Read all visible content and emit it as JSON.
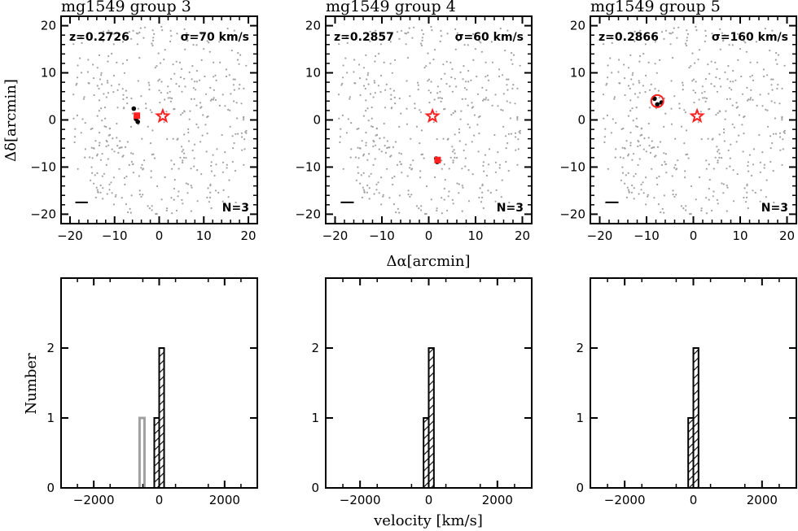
{
  "figure": {
    "sky_xlabel": "Δα[arcmin]",
    "sky_ylabel": "Δδ[arcmin]",
    "hist_xlabel": "velocity [km/s]",
    "hist_ylabel": "Number"
  },
  "chart_data": [
    {
      "type": "scatter",
      "title": "mg1549 group 3",
      "redshift_label": "z=0.2726",
      "sigma_label": "σ=70 km/s",
      "n_label": "N=3",
      "xlim": [
        -22,
        22
      ],
      "ylim": [
        -22,
        22
      ],
      "xticks": [
        -20,
        -10,
        0,
        10,
        20
      ],
      "yticks": [
        -20,
        -10,
        0,
        10,
        20
      ],
      "xticklabels": [
        "−20",
        "−10",
        "0",
        "10",
        "20"
      ],
      "yticklabels": [
        "−20",
        "−10",
        "0",
        "10",
        "20"
      ],
      "center_star": [
        0.8,
        0.8
      ],
      "members": [
        [
          -5.7,
          2.4
        ],
        [
          -5.2,
          0.2
        ],
        [
          -4.8,
          -0.4
        ]
      ],
      "group_center": [
        -5.0,
        0.9
      ],
      "center_marker": "square",
      "background_color": "#a0a0a0",
      "highlight_color": "#ff2020",
      "scale_bar": [
        -18.8,
        -16.0,
        -17.5
      ]
    },
    {
      "type": "scatter",
      "title": "mg1549 group 4",
      "redshift_label": "z=0.2857",
      "sigma_label": "σ=60 km/s",
      "n_label": "N=3",
      "xlim": [
        -22,
        22
      ],
      "ylim": [
        -22,
        22
      ],
      "xticks": [
        -20,
        -10,
        0,
        10,
        20
      ],
      "yticks": [
        -20,
        -10,
        0,
        10,
        20
      ],
      "xticklabels": [
        "−20",
        "−10",
        "0",
        "10",
        "20"
      ],
      "yticklabels": [
        "−20",
        "−10",
        "0",
        "10",
        "20"
      ],
      "center_star": [
        0.8,
        0.8
      ],
      "members": [
        [
          1.6,
          -8.2
        ],
        [
          2.1,
          -8.6
        ],
        [
          1.8,
          -8.9
        ]
      ],
      "group_center": [
        1.9,
        -8.5
      ],
      "center_marker": "square",
      "background_color": "#a0a0a0",
      "highlight_color": "#ff2020",
      "scale_bar": [
        -18.8,
        -16.0,
        -17.5
      ]
    },
    {
      "type": "scatter",
      "title": "mg1549 group 5",
      "redshift_label": "z=0.2866",
      "sigma_label": "σ=160 km/s",
      "n_label": "N=3",
      "xlim": [
        -22,
        22
      ],
      "ylim": [
        -22,
        22
      ],
      "xticks": [
        -20,
        -10,
        0,
        10,
        20
      ],
      "yticks": [
        -20,
        -10,
        0,
        10,
        20
      ],
      "xticklabels": [
        "−20",
        "−10",
        "0",
        "10",
        "20"
      ],
      "yticklabels": [
        "−20",
        "−10",
        "0",
        "10",
        "20"
      ],
      "center_star": [
        0.8,
        0.8
      ],
      "members": [
        [
          -8.3,
          4.5
        ],
        [
          -7.7,
          3.3
        ],
        [
          -6.8,
          3.7
        ]
      ],
      "group_center": [
        -7.7,
        4.0
      ],
      "center_marker": "circle",
      "background_color": "#a0a0a0",
      "highlight_color": "#ff2020",
      "scale_bar": [
        -18.8,
        -16.0,
        -17.5
      ]
    },
    {
      "type": "bar",
      "xlim": [
        -3000,
        3000
      ],
      "ylim": [
        0,
        3
      ],
      "xticks": [
        -2000,
        0,
        2000
      ],
      "yticks": [
        0,
        1,
        2
      ],
      "xticklabels": [
        "−2000",
        "0",
        "2000"
      ],
      "yticklabels": [
        "0",
        "1",
        "2"
      ],
      "bin_width": 150,
      "hatched_bins": [
        {
          "start": -150,
          "count": 1
        },
        {
          "start": 0,
          "count": 2
        }
      ],
      "open_bins": [
        {
          "start": -600,
          "count": 1
        }
      ],
      "open_color": "#a0a0a0"
    },
    {
      "type": "bar",
      "xlim": [
        -3000,
        3000
      ],
      "ylim": [
        0,
        3
      ],
      "xticks": [
        -2000,
        0,
        2000
      ],
      "yticks": [
        0,
        1,
        2
      ],
      "xticklabels": [
        "−2000",
        "0",
        "2000"
      ],
      "yticklabels": [
        "0",
        "1",
        "2"
      ],
      "bin_width": 150,
      "hatched_bins": [
        {
          "start": -150,
          "count": 1
        },
        {
          "start": 0,
          "count": 2
        }
      ],
      "open_bins": []
    },
    {
      "type": "bar",
      "xlim": [
        -3000,
        3000
      ],
      "ylim": [
        0,
        3
      ],
      "xticks": [
        -2000,
        0,
        2000
      ],
      "yticks": [
        0,
        1,
        2
      ],
      "xticklabels": [
        "−2000",
        "0",
        "2000"
      ],
      "yticklabels": [
        "0",
        "1",
        "2"
      ],
      "bin_width": 150,
      "hatched_bins": [
        {
          "start": -150,
          "count": 1
        },
        {
          "start": 0,
          "count": 2
        }
      ],
      "open_bins": []
    }
  ]
}
